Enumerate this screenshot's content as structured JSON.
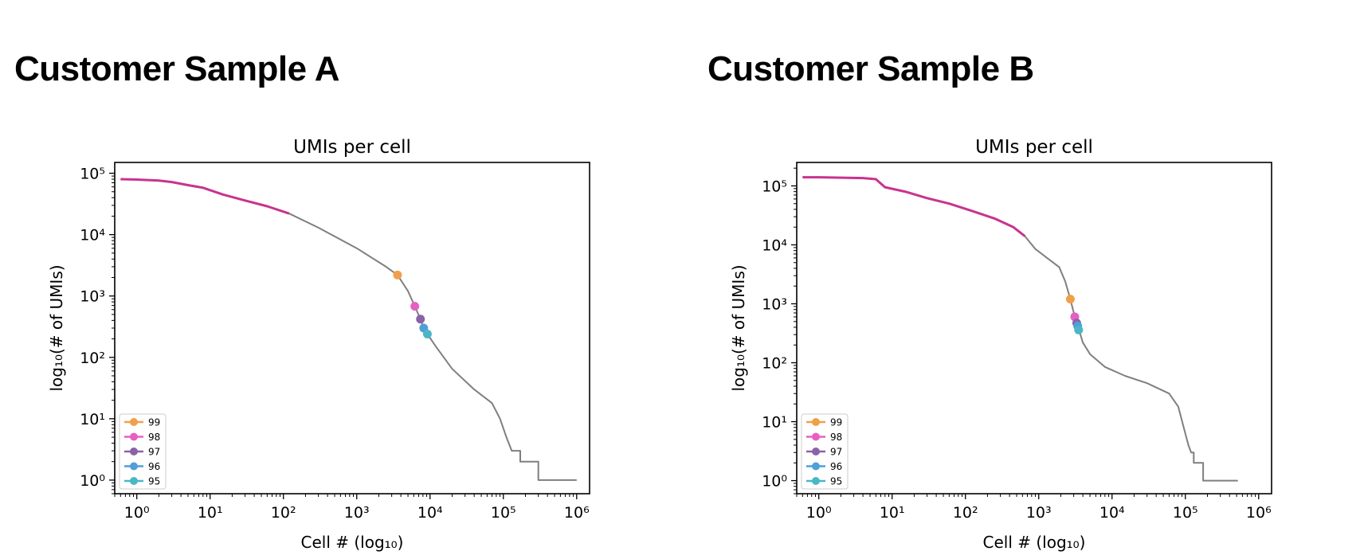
{
  "panels": [
    {
      "heading": "Customer Sample A"
    },
    {
      "heading": "Customer Sample B"
    }
  ],
  "chart_data": [
    {
      "type": "line",
      "title": "UMIs per cell",
      "xlabel": "Cell # (log10)",
      "ylabel": "log10(# of UMIs)",
      "xscale": "log",
      "yscale": "log",
      "xlim": [
        0.5,
        1500000
      ],
      "ylim": [
        0.6,
        150000
      ],
      "x_ticks": [
        1,
        10,
        100,
        1000,
        10000,
        100000,
        1000000
      ],
      "y_ticks": [
        1,
        10,
        100,
        1000,
        10000,
        100000
      ],
      "legend_position": "lower-left",
      "series": [
        {
          "role": "above-cutoff",
          "color": "#c9338e",
          "points": [
            [
              0.6,
              80000
            ],
            [
              1,
              79000
            ],
            [
              2,
              76000
            ],
            [
              3,
              72000
            ],
            [
              5,
              64000
            ],
            [
              8,
              58000
            ],
            [
              15,
              45000
            ],
            [
              30,
              36000
            ],
            [
              60,
              29000
            ],
            [
              120,
              22000
            ]
          ]
        },
        {
          "role": "below-cutoff",
          "color": "#7f7f7f",
          "points": [
            [
              120,
              22000
            ],
            [
              300,
              13000
            ],
            [
              1000,
              6000
            ],
            [
              2500,
              3000
            ],
            [
              3600,
              2200
            ],
            [
              5000,
              1200
            ],
            [
              6200,
              680
            ],
            [
              7400,
              420
            ],
            [
              8200,
              300
            ],
            [
              9200,
              240
            ],
            [
              12000,
              150
            ],
            [
              20000,
              65
            ],
            [
              40000,
              30
            ],
            [
              70000,
              18
            ],
            [
              90000,
              10
            ],
            [
              110000,
              5
            ],
            [
              130000,
              3
            ],
            [
              170000,
              3
            ],
            [
              170000,
              2
            ],
            [
              300000,
              2
            ],
            [
              300000,
              1
            ],
            [
              1000000,
              1
            ]
          ]
        }
      ],
      "markers": [
        {
          "label": "99",
          "x": 3600,
          "y": 2200,
          "color": "#f0a04b"
        },
        {
          "label": "98",
          "x": 6200,
          "y": 680,
          "color": "#e75fc4"
        },
        {
          "label": "97",
          "x": 7400,
          "y": 420,
          "color": "#8a62a8"
        },
        {
          "label": "96",
          "x": 8200,
          "y": 300,
          "color": "#4f9fd8"
        },
        {
          "label": "95",
          "x": 9200,
          "y": 240,
          "color": "#4bb7c6"
        }
      ]
    },
    {
      "type": "line",
      "title": "UMIs per cell",
      "xlabel": "Cell # (log10)",
      "ylabel": "log10(# of UMIs)",
      "xscale": "log",
      "yscale": "log",
      "xlim": [
        0.5,
        1500000
      ],
      "ylim": [
        0.6,
        250000
      ],
      "x_ticks": [
        1,
        10,
        100,
        1000,
        10000,
        100000,
        1000000
      ],
      "y_ticks": [
        1,
        10,
        100,
        1000,
        10000,
        100000
      ],
      "legend_position": "lower-left",
      "series": [
        {
          "role": "above-cutoff",
          "color": "#c9338e",
          "points": [
            [
              0.6,
              140000
            ],
            [
              1,
              140000
            ],
            [
              2,
              138000
            ],
            [
              4,
              136000
            ],
            [
              6,
              130000
            ],
            [
              8,
              95000
            ],
            [
              15,
              80000
            ],
            [
              30,
              62000
            ],
            [
              60,
              50000
            ],
            [
              120,
              38000
            ],
            [
              250,
              28000
            ],
            [
              450,
              20000
            ],
            [
              650,
              14000
            ]
          ]
        },
        {
          "role": "below-cutoff",
          "color": "#7f7f7f",
          "points": [
            [
              650,
              14000
            ],
            [
              900,
              8500
            ],
            [
              1300,
              6000
            ],
            [
              1900,
              4200
            ],
            [
              2300,
              2400
            ],
            [
              2700,
              1200
            ],
            [
              3100,
              600
            ],
            [
              3300,
              450
            ],
            [
              3500,
              380
            ],
            [
              4000,
              220
            ],
            [
              5000,
              140
            ],
            [
              8000,
              85
            ],
            [
              15000,
              60
            ],
            [
              30000,
              45
            ],
            [
              60000,
              30
            ],
            [
              80000,
              18
            ],
            [
              95000,
              8
            ],
            [
              110000,
              4
            ],
            [
              120000,
              3
            ],
            [
              130000,
              3
            ],
            [
              130000,
              2
            ],
            [
              175000,
              2
            ],
            [
              175000,
              1
            ],
            [
              520000,
              1
            ]
          ]
        }
      ],
      "markers": [
        {
          "label": "99",
          "x": 2700,
          "y": 1200,
          "color": "#f0a04b"
        },
        {
          "label": "98",
          "x": 3100,
          "y": 600,
          "color": "#e75fc4"
        },
        {
          "label": "97",
          "x": 3300,
          "y": 470,
          "color": "#8a62a8"
        },
        {
          "label": "96",
          "x": 3400,
          "y": 420,
          "color": "#4f9fd8"
        },
        {
          "label": "95",
          "x": 3500,
          "y": 360,
          "color": "#4bb7c6"
        }
      ]
    }
  ]
}
